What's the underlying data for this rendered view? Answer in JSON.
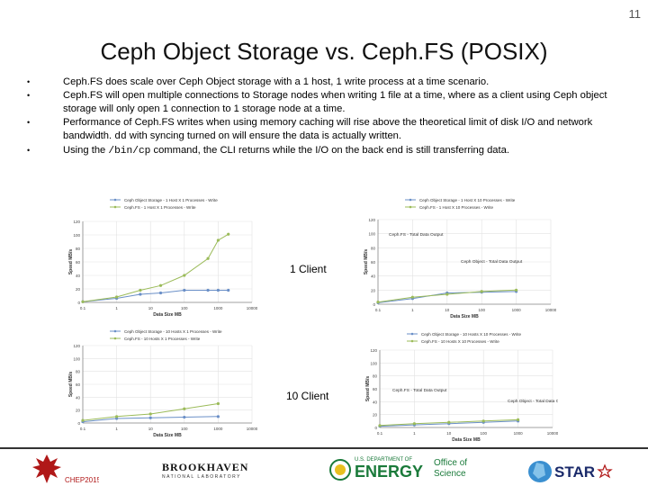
{
  "slide": {
    "number": "11",
    "title": "Ceph Object Storage vs. Ceph.FS (POSIX)"
  },
  "bullets": [
    {
      "text": "Ceph.FS does scale over Ceph Object storage with a 1 host, 1 write process at a time scenario."
    },
    {
      "text": "Ceph.FS will open multiple connections to Storage nodes when writing 1 file at a time, where as a client using Ceph object storage will only open 1 connection to 1 storage node at a time."
    },
    {
      "pre": "Performance of Ceph.FS writes when using memory caching will rise above the theoretical limit of disk I/O and network bandwidth. ",
      "code": "dd",
      "post": " with syncing turned on will ensure the data is actually written."
    },
    {
      "pre": "Using the ",
      "code": "/bin/cp",
      "post": " command, the CLI returns while the I/O on the back end is still transferring data."
    }
  ],
  "labels": {
    "one_client": "1 Client",
    "ten_client": "10 Client"
  },
  "chart_data": [
    {
      "type": "line",
      "xlabel": "Data Size MB",
      "ylabel": "Speed MB/s",
      "x_scale": "log",
      "xlim": [
        0.1,
        10000
      ],
      "ylim": [
        0,
        120
      ],
      "x_ticks": [
        "0.1",
        "1",
        "10",
        "100",
        "1000",
        "10000"
      ],
      "y_ticks": [
        "0",
        "20",
        "40",
        "60",
        "80",
        "100",
        "120"
      ],
      "legend_position": "top",
      "series": [
        {
          "name": "Ceph Object Storage  - 1 Host X 1 Processes - Write",
          "color": "#6a8fc7",
          "x": [
            0.1,
            1,
            5,
            20,
            100,
            500,
            1000,
            2000
          ],
          "y": [
            1,
            6,
            12,
            14,
            18,
            18,
            18,
            18
          ]
        },
        {
          "name": "Ceph.FS  - 1 Host X 1 Processes - Write",
          "color": "#9bbb59",
          "x": [
            0.1,
            1,
            5,
            20,
            100,
            500,
            1000,
            2000
          ],
          "y": [
            1,
            8,
            18,
            25,
            40,
            65,
            92,
            101
          ]
        }
      ]
    },
    {
      "type": "line",
      "xlabel": "Data Size MB",
      "ylabel": "Speed MB/s",
      "x_scale": "log",
      "xlim": [
        0.1,
        10000
      ],
      "ylim": [
        0,
        120
      ],
      "x_ticks": [
        "0.1",
        "1",
        "10",
        "100",
        "1000",
        "10000"
      ],
      "y_ticks": [
        "0",
        "20",
        "40",
        "60",
        "80",
        "100",
        "120"
      ],
      "legend_position": "top",
      "annotations": [
        "Ceph.FS - Total Data Output",
        "Ceph Object - Total Data Output"
      ],
      "series": [
        {
          "name": "Ceph Object Storage  - 1 Host X 10 Processes - Write",
          "color": "#6a8fc7",
          "x": [
            0.1,
            1,
            10,
            100,
            1000
          ],
          "y": [
            2,
            8,
            16,
            17,
            18
          ]
        },
        {
          "name": "Ceph.FS  - 1 Host X 10 Processes - Write",
          "color": "#9bbb59",
          "x": [
            0.1,
            1,
            10,
            100,
            1000
          ],
          "y": [
            3,
            10,
            14,
            18,
            20
          ]
        }
      ]
    },
    {
      "type": "line",
      "xlabel": "Data Size MB",
      "ylabel": "Speed MB/s",
      "x_scale": "log",
      "xlim": [
        0.1,
        10000
      ],
      "ylim": [
        0,
        120
      ],
      "x_ticks": [
        "0.1",
        "1",
        "10",
        "100",
        "1000",
        "10000"
      ],
      "y_ticks": [
        "0",
        "20",
        "40",
        "60",
        "80",
        "100",
        "120"
      ],
      "legend_position": "top",
      "series": [
        {
          "name": "Ceph Object Storage  - 10 Hosts X 1 Processes - Write",
          "color": "#6a8fc7",
          "x": [
            0.1,
            1,
            10,
            100,
            1000
          ],
          "y": [
            2,
            7,
            8,
            9,
            10
          ]
        },
        {
          "name": "Ceph.FS  - 10 Hosts X 1 Processes - Write",
          "color": "#9bbb59",
          "x": [
            0.1,
            1,
            10,
            100,
            1000
          ],
          "y": [
            4,
            10,
            14,
            22,
            30
          ]
        }
      ]
    },
    {
      "type": "line",
      "xlabel": "Data Size MB",
      "ylabel": "Speed MB/s",
      "x_scale": "log",
      "xlim": [
        0.1,
        10000
      ],
      "ylim": [
        0,
        120
      ],
      "x_ticks": [
        "0.1",
        "1",
        "10",
        "100",
        "1000",
        "10000"
      ],
      "y_ticks": [
        "0",
        "20",
        "40",
        "60",
        "80",
        "100",
        "120"
      ],
      "legend_position": "top",
      "annotations": [
        "Ceph.FS - Total Data Output",
        "Ceph Object - Total Data Output"
      ],
      "series": [
        {
          "name": "Ceph Object Storage  - 10 Hosts X 10 Processes - Write",
          "color": "#6a8fc7",
          "x": [
            0.1,
            1,
            10,
            100,
            1000
          ],
          "y": [
            2,
            4,
            6,
            8,
            10
          ]
        },
        {
          "name": "Ceph.FS  - 10 Hosts X 10 Processes - Write",
          "color": "#9bbb59",
          "x": [
            0.1,
            1,
            10,
            100,
            1000
          ],
          "y": [
            3,
            6,
            8,
            10,
            12
          ]
        }
      ]
    }
  ],
  "footer": {
    "chep_text": "CHEP2015",
    "bnl_text": "BROOKHAVEN",
    "bnl_sub": "NATIONAL LABORATORY",
    "doe_top": "U.S. DEPARTMENT OF",
    "doe_main": "ENERGY",
    "science_1": "Office of",
    "science_2": "Science",
    "star_text": "STAR",
    "colors": {
      "doe_green": "#1a7a3a",
      "star_navy": "#1a2a6a",
      "chep_red": "#b01818"
    }
  }
}
